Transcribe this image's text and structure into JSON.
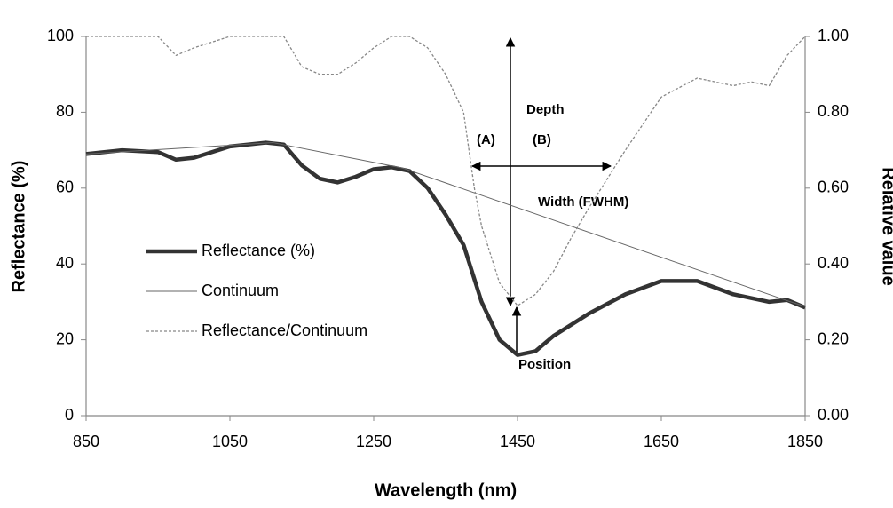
{
  "chart_data": {
    "type": "line",
    "x_label": "Wavelength (nm)",
    "y_label": "Reflectance (%)",
    "y2_label": "Relative value",
    "xlim": [
      850,
      1850
    ],
    "xticks": [
      850,
      1050,
      1250,
      1450,
      1650,
      1850
    ],
    "ylim": [
      0,
      100
    ],
    "yticks": [
      0,
      20,
      40,
      60,
      80,
      100
    ],
    "y2lim": [
      0,
      1
    ],
    "y2ticks": [
      {
        "value": 0,
        "label": "0.00"
      },
      {
        "value": 0.2,
        "label": "0.20"
      },
      {
        "value": 0.4,
        "label": "0.40"
      },
      {
        "value": 0.6,
        "label": "0.60"
      },
      {
        "value": 0.8,
        "label": "0.80"
      },
      {
        "value": 1,
        "label": "1.00"
      }
    ],
    "grid": false,
    "legend": "left",
    "series": [
      {
        "name": "Reflectance (%)",
        "color": "#333333",
        "style": "thick",
        "x": [
          850,
          900,
          950,
          975,
          1000,
          1050,
          1100,
          1125,
          1150,
          1175,
          1200,
          1225,
          1250,
          1275,
          1300,
          1325,
          1350,
          1375,
          1400,
          1425,
          1450,
          1475,
          1500,
          1550,
          1600,
          1650,
          1700,
          1750,
          1800,
          1825,
          1850
        ],
        "values": [
          69,
          70,
          69.5,
          67.5,
          68,
          71,
          72,
          71.5,
          66,
          62.5,
          61.5,
          63,
          65,
          65.5,
          64.5,
          60,
          53,
          45,
          30,
          20,
          16,
          17,
          21,
          27,
          32,
          35.5,
          35.5,
          32,
          30,
          30.5,
          28.5
        ]
      },
      {
        "name": "Continuum",
        "color": "#666666",
        "style": "thin",
        "x": [
          850,
          1110,
          1290,
          1830,
          1850
        ],
        "values": [
          69,
          72,
          65.3,
          30,
          28.8
        ]
      },
      {
        "name": "Reflectance/Continuum",
        "color": "#888888",
        "style": "dotted",
        "axis": "y2",
        "x": [
          850,
          950,
          975,
          1000,
          1050,
          1125,
          1150,
          1175,
          1200,
          1225,
          1250,
          1275,
          1300,
          1325,
          1350,
          1375,
          1390,
          1400,
          1425,
          1450,
          1475,
          1500,
          1525,
          1550,
          1600,
          1650,
          1700,
          1750,
          1775,
          1800,
          1825,
          1850
        ],
        "values": [
          1,
          1,
          0.95,
          0.97,
          1,
          1,
          0.92,
          0.9,
          0.9,
          0.93,
          0.97,
          1,
          1,
          0.97,
          0.9,
          0.8,
          0.6,
          0.5,
          0.35,
          0.29,
          0.32,
          0.38,
          0.47,
          0.55,
          0.7,
          0.84,
          0.89,
          0.87,
          0.88,
          0.87,
          0.95,
          1
        ]
      }
    ],
    "annotations": [
      "Depth",
      "(A)",
      "(B)",
      "Width (FWHM)",
      "Position"
    ]
  }
}
